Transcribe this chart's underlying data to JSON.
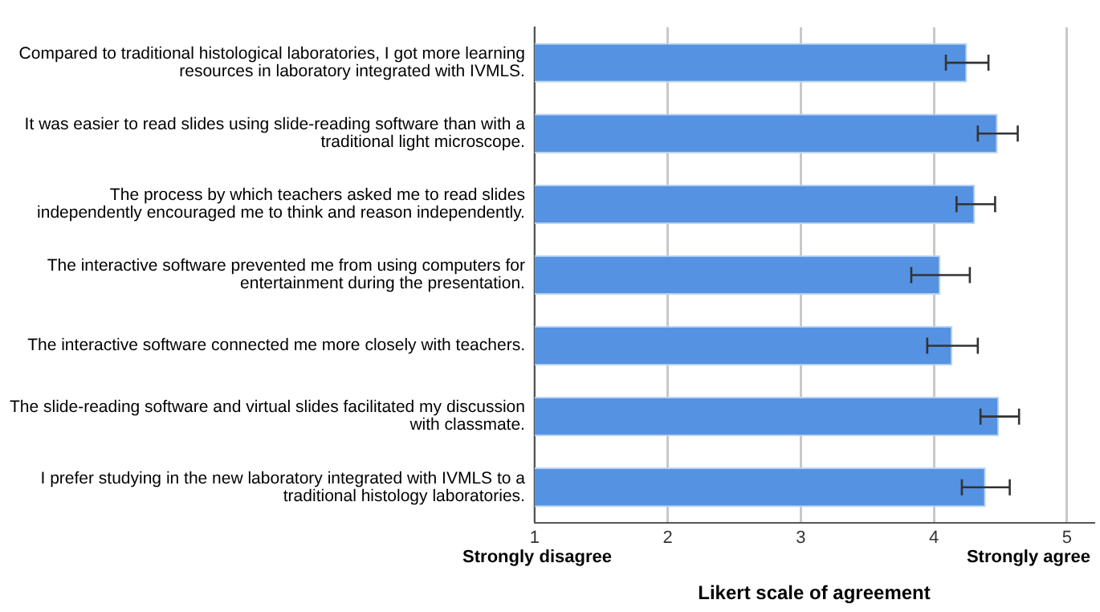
{
  "chart_data": {
    "type": "bar",
    "orientation": "horizontal",
    "xlabel": "Likert scale of agreement",
    "categories": [
      "Compared to traditional histological laboratories, I got more learning resources in laboratory integrated with IVMLS.",
      "It was easier to read slides using slide-reading software than with a traditional light microscope.",
      "The process by which teachers asked me to read slides independently encouraged me to think and reason independently.",
      "The interactive software prevented me from using computers for entertainment during the presentation.",
      "The interactive software connected me more closely with teachers.",
      "The slide-reading software and virtual slides facilitated my discussion with classmate.",
      "I prefer studying in the new laboratory integrated with IVMLS to a traditional histology laboratories."
    ],
    "values": [
      4.25,
      4.48,
      4.31,
      4.05,
      4.14,
      4.49,
      4.39
    ],
    "errors": [
      [
        4.09,
        4.41
      ],
      [
        4.33,
        4.63
      ],
      [
        4.17,
        4.46
      ],
      [
        3.83,
        4.27
      ],
      [
        3.95,
        4.33
      ],
      [
        4.35,
        4.64
      ],
      [
        4.21,
        4.57
      ]
    ],
    "color": "#5592e2",
    "xlim": [
      1,
      5.2
    ],
    "xticks": [
      1,
      2,
      3,
      4,
      5
    ],
    "grid": "x",
    "annotations": [
      "Strongly disagree",
      "Strongly agree"
    ]
  }
}
